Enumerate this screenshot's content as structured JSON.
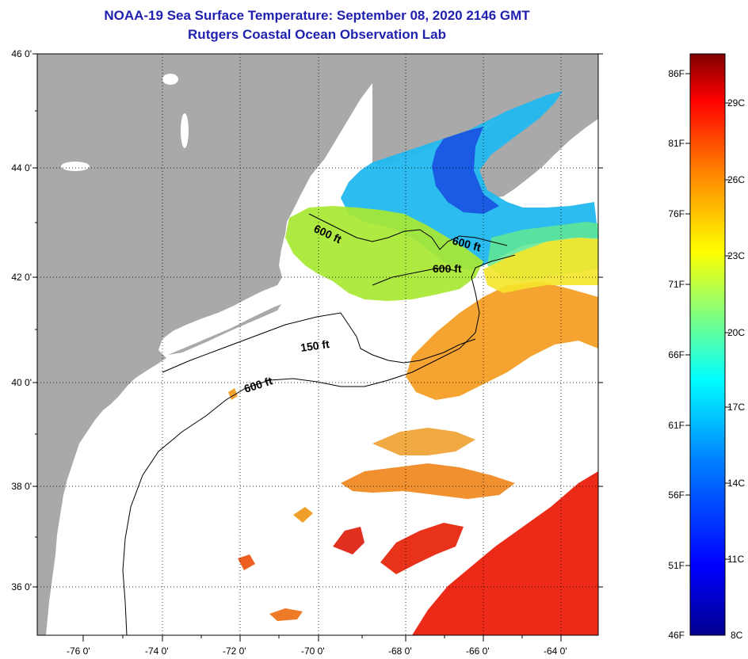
{
  "title": {
    "line1": "NOAA-19 Sea Surface Temperature:  September 08, 2020 2146 GMT",
    "line2": "Rutgers Coastal Ocean Observation Lab"
  },
  "map": {
    "lat_labels": [
      "46 0'",
      "44 0'",
      "42 0'",
      "40 0'",
      "38 0'",
      "36 0'"
    ],
    "lon_labels": [
      "-76 0'",
      "-74 0'",
      "-72 0'",
      "-70 0'",
      "-68 0'",
      "-66 0'",
      "-64 0'"
    ],
    "contour_labels": [
      "600 ft",
      "600 ft",
      "600 ft",
      "150 ft",
      "600 ft"
    ],
    "colors": {
      "land": "#a9a9a9",
      "cloud": "#ffffff"
    }
  },
  "colorbar": {
    "f_labels": [
      "86F",
      "81F",
      "76F",
      "71F",
      "66F",
      "61F",
      "56F",
      "51F",
      "46F"
    ],
    "c_labels": [
      "29C",
      "26C",
      "23C",
      "20C",
      "17C",
      "14C",
      "11C",
      "8C"
    ],
    "gradient": [
      "#00008f",
      "#0000ff",
      "#0080ff",
      "#00ffff",
      "#80ff80",
      "#ffff00",
      "#ff8000",
      "#ff0000",
      "#800000"
    ]
  }
}
